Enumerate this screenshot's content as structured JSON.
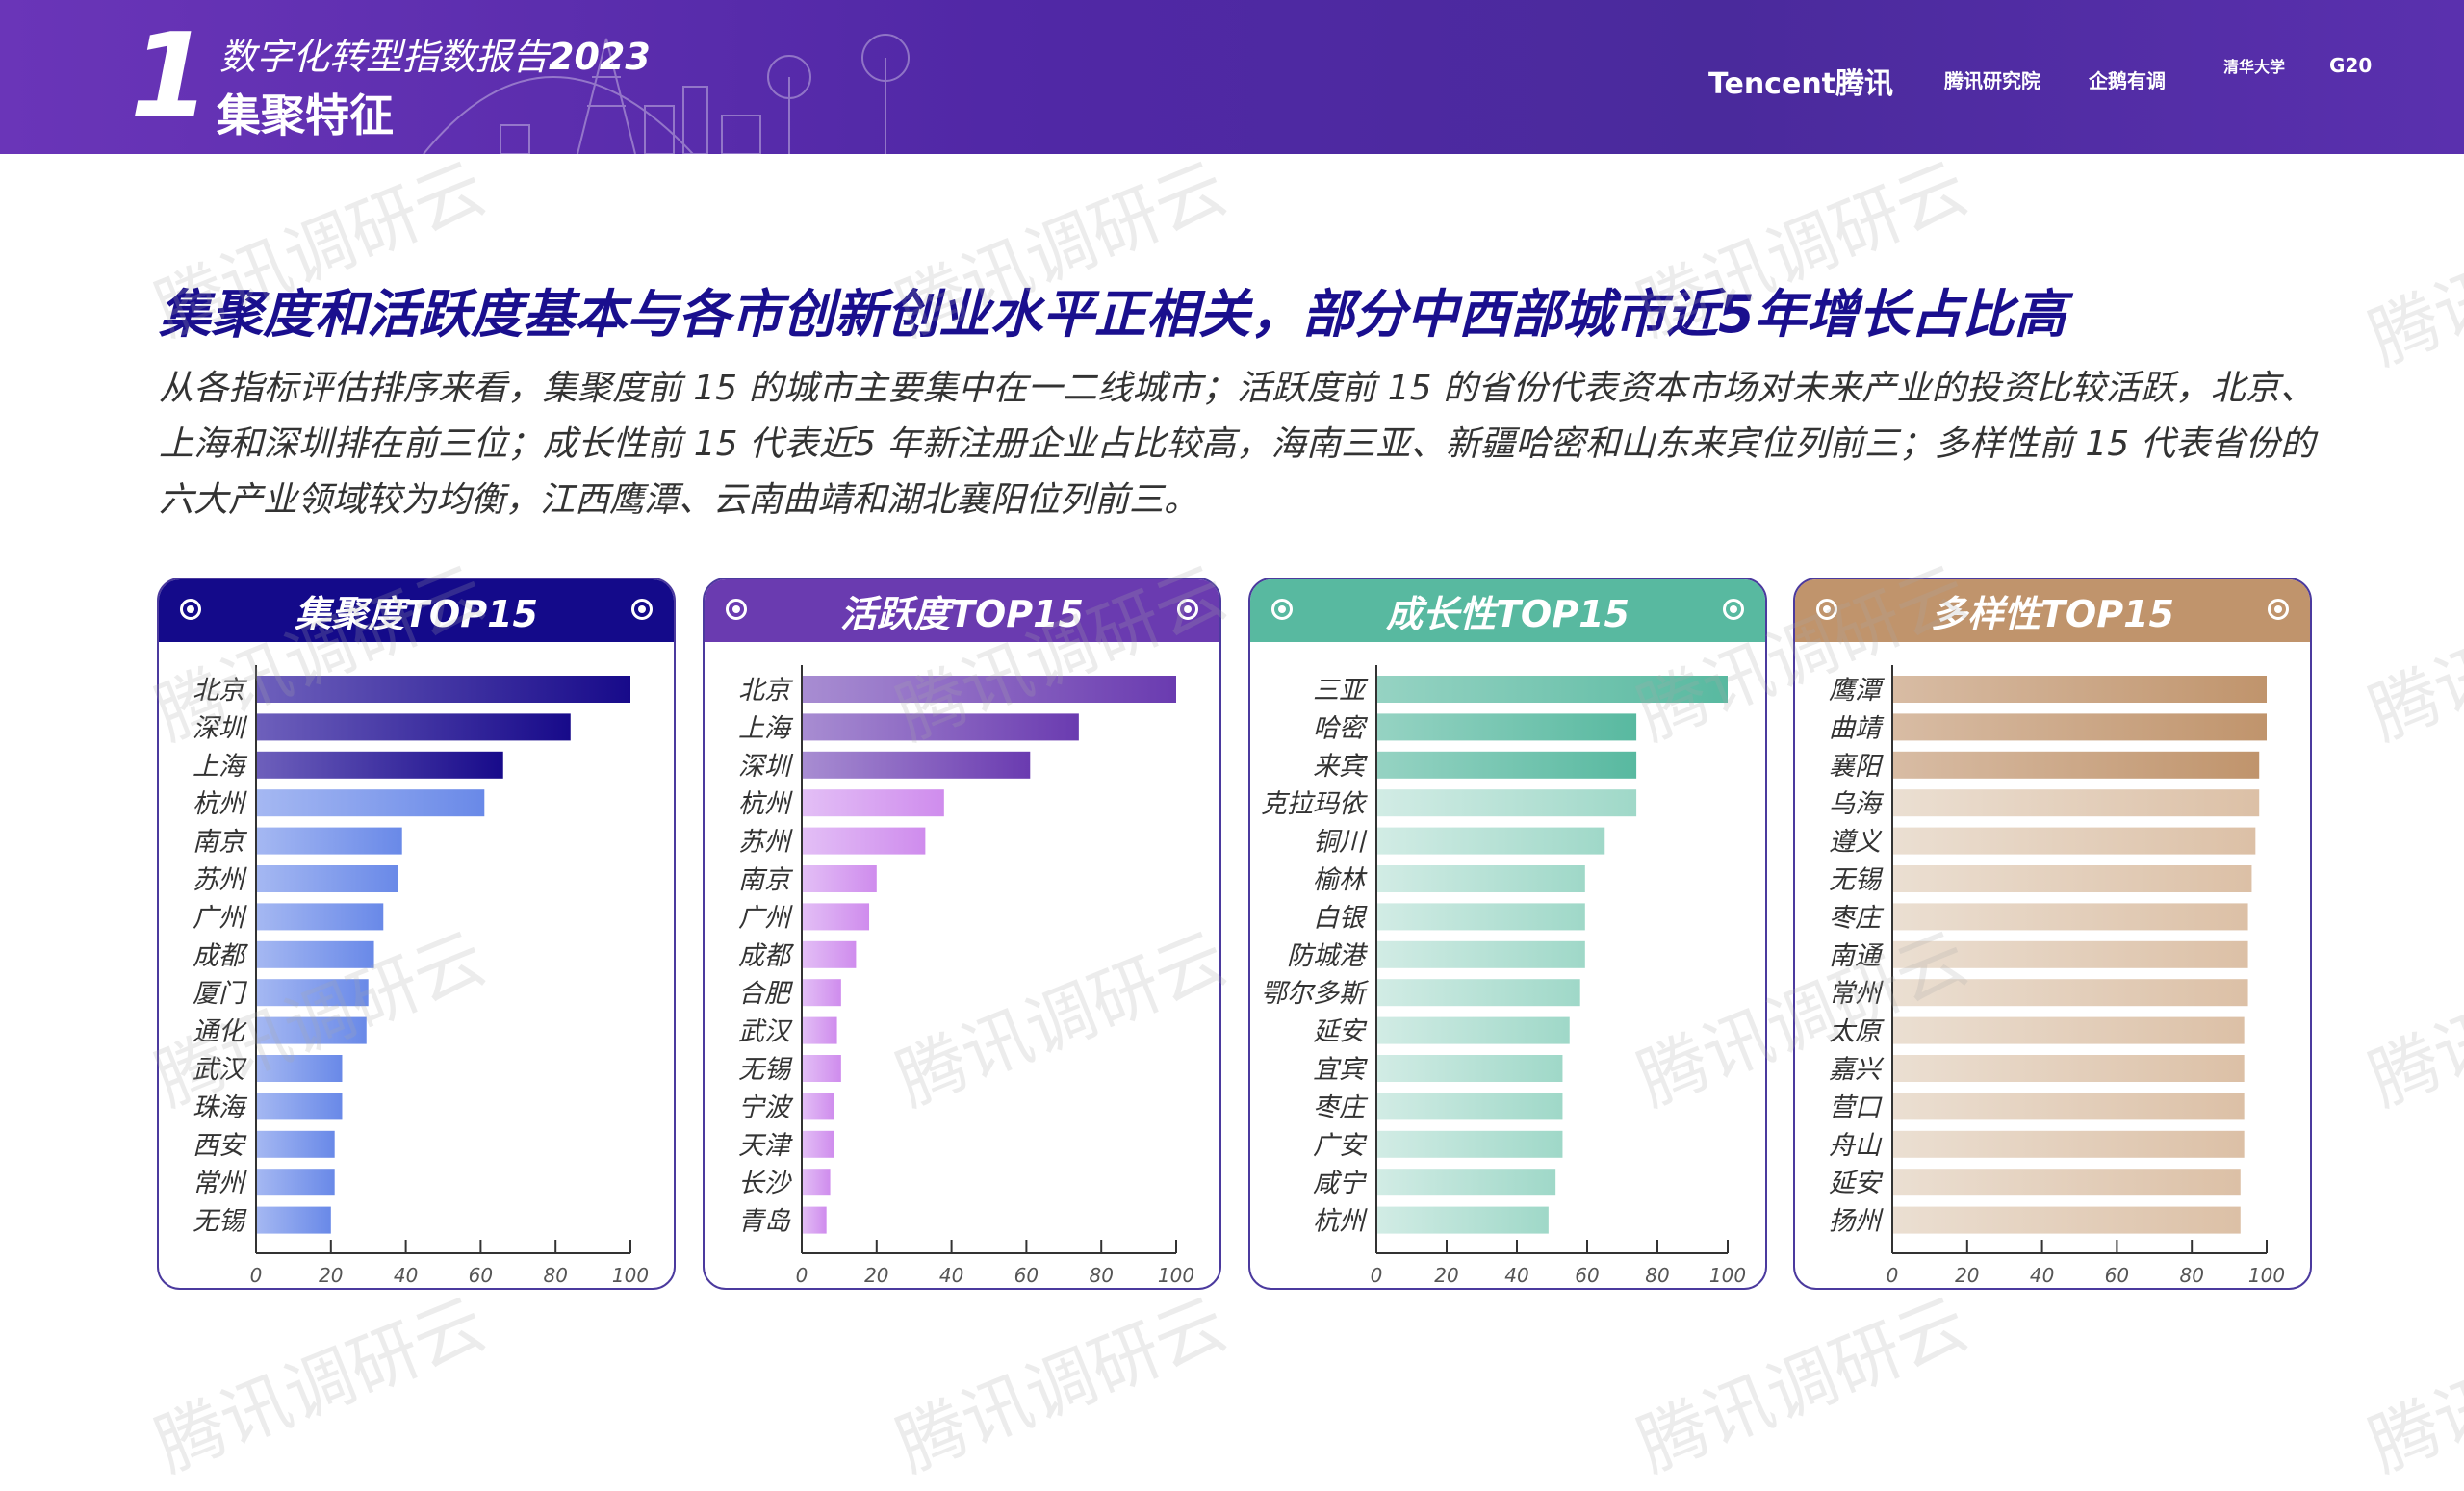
{
  "banner": {
    "number": "1",
    "report_title": "数字化转型指数报告",
    "report_year": "2023",
    "section": "集聚特征",
    "logos": [
      "Tencent腾讯",
      "腾讯研究院",
      "企鹅有调",
      "清华大学",
      "G20"
    ]
  },
  "headline": "集聚度和活跃度基本与各市创新创业水平正相关，部分中西部城市近5年增长占比高",
  "paragraph": "从各指标评估排序来看，集聚度前 15 的城市主要集中在一二线城市；活跃度前 15 的省份代表资本市场对未来产业的投资比较活跃，北京、上海和深圳排在前三位；成长性前 15 代表近5 年新注册企业占比较高，海南三亚、新疆哈密和山东来宾位列前三；多样性前 15 代表省份的六大产业领域较为均衡，江西鹰潭、云南曲靖和湖北襄阳位列前三。",
  "watermark": "腾讯调研云",
  "chart_data": [
    {
      "type": "bar",
      "orientation": "horizontal",
      "title": "集聚度TOP15",
      "header_color": "#140a8a",
      "xlim": [
        0,
        100
      ],
      "ticks": [
        0,
        20,
        40,
        60,
        80,
        100
      ],
      "categories": [
        "北京",
        "深圳",
        "上海",
        "杭州",
        "南京",
        "苏州",
        "广州",
        "成都",
        "厦门",
        "通化",
        "武汉",
        "珠海",
        "西安",
        "常州",
        "无锡"
      ],
      "values": [
        100,
        84,
        66,
        61,
        39,
        38,
        34,
        31.5,
        30,
        29.5,
        23,
        23,
        21,
        21,
        20
      ],
      "colors": {
        "top": [
          "#6e60bc",
          "#170a8a"
        ],
        "rest": [
          "#a5b8f2",
          "#6989e8"
        ]
      },
      "highlight_count": 3
    },
    {
      "type": "bar",
      "orientation": "horizontal",
      "title": "活跃度TOP15",
      "header_color": "#6a3bb0",
      "xlim": [
        0,
        100
      ],
      "ticks": [
        0,
        20,
        40,
        60,
        80,
        100
      ],
      "categories": [
        "北京",
        "上海",
        "深圳",
        "杭州",
        "苏州",
        "南京",
        "广州",
        "成都",
        "合肥",
        "武汉",
        "无锡",
        "宁波",
        "天津",
        "长沙",
        "青岛"
      ],
      "values": [
        100,
        74,
        61,
        38,
        33,
        20,
        18,
        14.5,
        10.5,
        9.4,
        10.5,
        8.7,
        8.7,
        7.6,
        6.6
      ],
      "colors": {
        "top": [
          "#a88dd2",
          "#6a3bb0"
        ],
        "rest": [
          "#e3bff6",
          "#cf8ced"
        ]
      },
      "highlight_count": 3
    },
    {
      "type": "bar",
      "orientation": "horizontal",
      "title": "成长性TOP15",
      "header_color": "#58b9a0",
      "xlim": [
        0,
        100
      ],
      "ticks": [
        0,
        20,
        40,
        60,
        80,
        100
      ],
      "categories": [
        "三亚",
        "哈密",
        "来宾",
        "克拉玛依",
        "铜川",
        "榆林",
        "白银",
        "防城港",
        "鄂尔多斯",
        "延安",
        "宜宾",
        "枣庄",
        "广安",
        "咸宁",
        "杭州"
      ],
      "values": [
        100,
        74,
        74,
        74,
        65,
        59.4,
        59.4,
        59.4,
        58,
        55,
        53,
        53,
        53,
        51,
        49
      ],
      "colors": {
        "top": [
          "#96d3c3",
          "#58b9a0"
        ],
        "rest": [
          "#d2ece5",
          "#9fd8c8"
        ]
      },
      "highlight_count": 3
    },
    {
      "type": "bar",
      "orientation": "horizontal",
      "title": "多样性TOP15",
      "header_color": "#c0946c",
      "xlim": [
        0,
        100
      ],
      "ticks": [
        0,
        20,
        40,
        60,
        80,
        100
      ],
      "categories": [
        "鹰潭",
        "曲靖",
        "襄阳",
        "乌海",
        "遵义",
        "无锡",
        "枣庄",
        "南通",
        "常州",
        "太原",
        "嘉兴",
        "营口",
        "舟山",
        "延安",
        "扬州"
      ],
      "values": [
        100,
        100,
        98,
        98,
        97,
        96,
        95,
        95,
        95,
        94,
        94,
        94,
        94,
        93,
        93
      ],
      "colors": {
        "top": [
          "#d8bca4",
          "#c0946c"
        ],
        "rest": [
          "#ebdfd2",
          "#dcc0a6"
        ]
      },
      "highlight_count": 3
    }
  ]
}
